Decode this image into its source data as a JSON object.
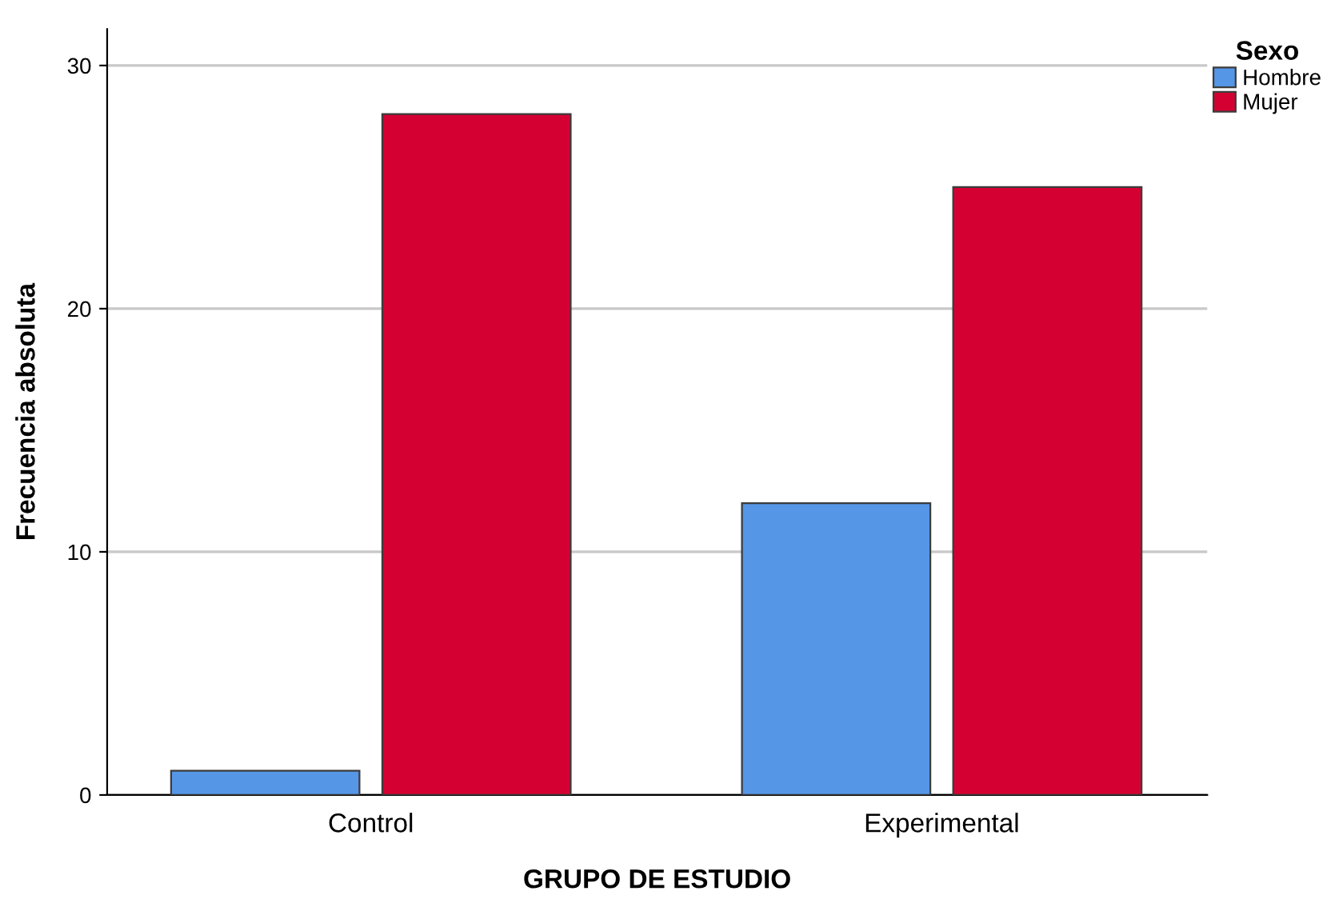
{
  "chart_data": {
    "type": "bar",
    "xlabel": "GRUPO DE ESTUDIO",
    "ylabel": "Frecuencia absoluta",
    "legend_title": "Sexo",
    "categories": [
      "Control",
      "Experimental"
    ],
    "series": [
      {
        "name": "Hombre",
        "color": "#5596e6",
        "values": [
          1,
          12
        ]
      },
      {
        "name": "Mujer",
        "color": "#d50032",
        "values": [
          28,
          25
        ]
      }
    ],
    "ylim": [
      0,
      31.5
    ],
    "yticks": [
      0,
      10,
      20,
      30
    ],
    "grid": "y",
    "legend": "top right"
  }
}
